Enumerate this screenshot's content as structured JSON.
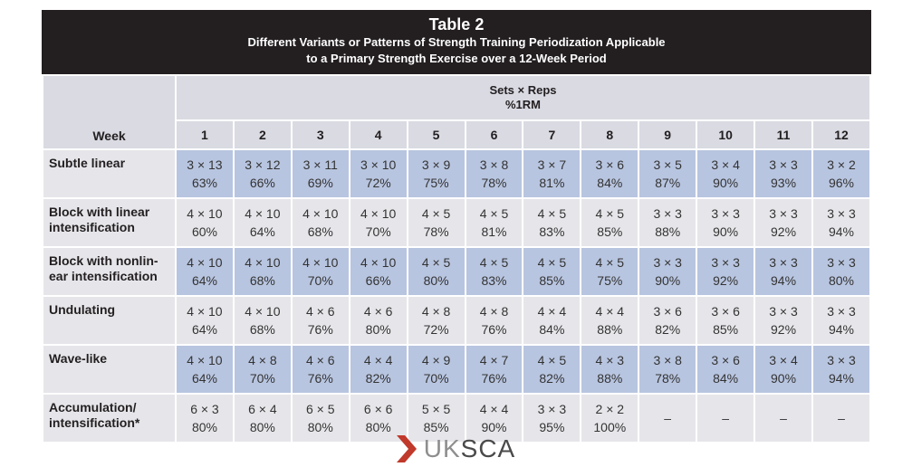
{
  "table": {
    "title": "Table 2",
    "subtitle_line1": "Different Variants or Patterns of Strength Training Periodization Applicable",
    "subtitle_line2": "to a Primary Strength Exercise over a 12-Week Period",
    "sets_reps_label": "Sets × Reps",
    "rm_label": "%1RM",
    "week_label": "Week",
    "weeks": [
      "1",
      "2",
      "3",
      "4",
      "5",
      "6",
      "7",
      "8",
      "9",
      "10",
      "11",
      "12"
    ],
    "rows": [
      {
        "label_lines": [
          "Subtle linear",
          ""
        ],
        "sets": [
          "3 × 13",
          "3 × 12",
          "3 × 11",
          "3 × 10",
          "3 × 9",
          "3 × 8",
          "3 × 7",
          "3 × 6",
          "3 × 5",
          "3 × 4",
          "3 × 3",
          "3 × 2"
        ],
        "pct": [
          "63%",
          "66%",
          "69%",
          "72%",
          "75%",
          "78%",
          "81%",
          "84%",
          "87%",
          "90%",
          "93%",
          "96%"
        ]
      },
      {
        "label_lines": [
          "Block with linear",
          "intensification"
        ],
        "sets": [
          "4 × 10",
          "4 × 10",
          "4 × 10",
          "4 × 10",
          "4 × 5",
          "4 × 5",
          "4 × 5",
          "4 × 5",
          "3 × 3",
          "3 × 3",
          "3 × 3",
          "3 × 3"
        ],
        "pct": [
          "60%",
          "64%",
          "68%",
          "70%",
          "78%",
          "81%",
          "83%",
          "85%",
          "88%",
          "90%",
          "92%",
          "94%"
        ]
      },
      {
        "label_lines": [
          "Block with nonlin-",
          "ear intensification"
        ],
        "sets": [
          "4 × 10",
          "4 × 10",
          "4 × 10",
          "4 × 10",
          "4 × 5",
          "4 × 5",
          "4 × 5",
          "4 × 5",
          "3 × 3",
          "3 × 3",
          "3 × 3",
          "3 × 3"
        ],
        "pct": [
          "64%",
          "68%",
          "70%",
          "66%",
          "80%",
          "83%",
          "85%",
          "75%",
          "90%",
          "92%",
          "94%",
          "80%"
        ]
      },
      {
        "label_lines": [
          "Undulating",
          ""
        ],
        "sets": [
          "4 × 10",
          "4 × 10",
          "4 × 6",
          "4 × 6",
          "4 × 8",
          "4 × 8",
          "4 × 4",
          "4 × 4",
          "3 × 6",
          "3 × 6",
          "3 × 3",
          "3 × 3"
        ],
        "pct": [
          "64%",
          "68%",
          "76%",
          "80%",
          "72%",
          "76%",
          "84%",
          "88%",
          "82%",
          "85%",
          "92%",
          "94%"
        ]
      },
      {
        "label_lines": [
          "Wave-like",
          ""
        ],
        "sets": [
          "4 × 10",
          "4 × 8",
          "4 × 6",
          "4 × 4",
          "4 × 9",
          "4 × 7",
          "4 × 5",
          "4 × 3",
          "3 × 8",
          "3 × 6",
          "3 × 4",
          "3 × 3"
        ],
        "pct": [
          "64%",
          "70%",
          "76%",
          "82%",
          "70%",
          "76%",
          "82%",
          "88%",
          "78%",
          "84%",
          "90%",
          "94%"
        ]
      },
      {
        "label_lines": [
          "Accumulation/",
          "intensification*"
        ],
        "sets": [
          "6 × 3",
          "6 × 4",
          "6 × 5",
          "6 × 6",
          "5 × 5",
          "4 × 4",
          "3 × 3",
          "2 × 2",
          "–",
          "–",
          "–",
          "–"
        ],
        "pct": [
          "80%",
          "80%",
          "80%",
          "80%",
          "85%",
          "90%",
          "95%",
          "100%",
          "",
          "",
          "",
          ""
        ]
      }
    ],
    "colors": {
      "header_bg": "#231f20",
      "shaded_row": "#b8c5e0",
      "light_row": "#e6e6ea",
      "header_cell": "#d9dae2"
    }
  },
  "footer": {
    "logo_uk": "UK",
    "logo_sca": "SCA",
    "logo_icon": "chevron-right-icon",
    "logo_color": "#c0392b"
  }
}
